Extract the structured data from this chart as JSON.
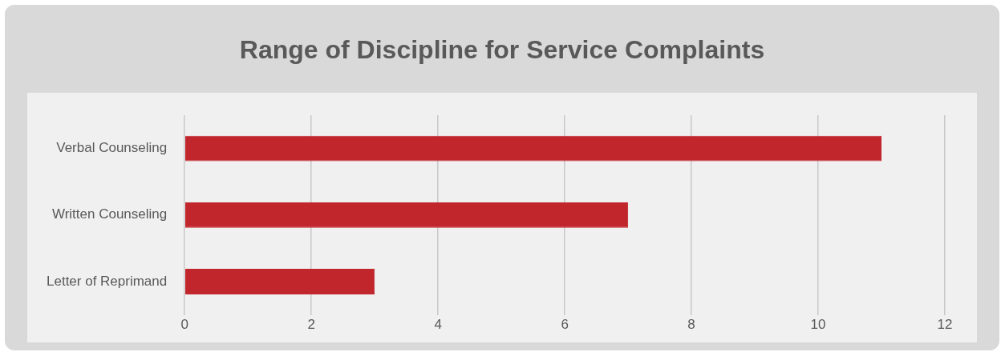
{
  "chart_data": {
    "type": "bar",
    "title": "Range of Discipline for Service Complaints",
    "orientation": "horizontal",
    "categories": [
      "Verbal Counseling",
      "Written Counseling",
      "Letter of Reprimand"
    ],
    "values": [
      11,
      7,
      3
    ],
    "color": "#c0262c",
    "xlim": [
      0,
      12
    ],
    "xticks": [
      0,
      2,
      4,
      6,
      8,
      10,
      12
    ],
    "grid": "x"
  }
}
